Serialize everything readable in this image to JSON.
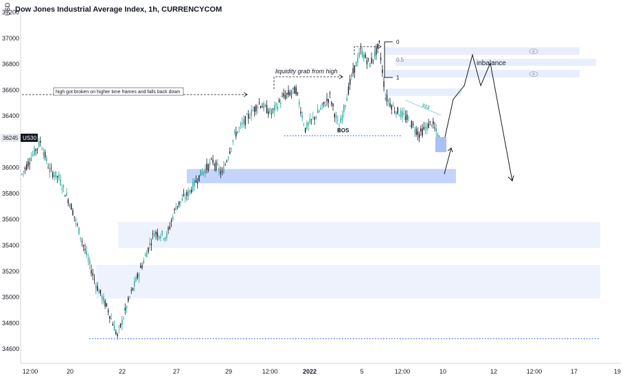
{
  "chart_data": {
    "type": "candlestick",
    "title": "Dow Jones Industrial Average Index, 1h, CURRENCYCOM",
    "unit_label": "USD",
    "symbol": "US30",
    "last_price_label": "36245",
    "ylim": [
      34500,
      37200
    ],
    "y_ticks": [
      "37200",
      "37000",
      "36800",
      "36600",
      "36400",
      "36000",
      "35800",
      "35600",
      "35400",
      "35200",
      "35000",
      "34800",
      "34600"
    ],
    "x_ticks": [
      "12:00",
      "20",
      "22",
      "27",
      "29",
      "12:00",
      "2022",
      "5",
      "12:00",
      "10",
      "12",
      "12:00",
      "17",
      "19"
    ],
    "x_tick_bold": [
      false,
      false,
      false,
      false,
      false,
      false,
      true,
      false,
      false,
      false,
      false,
      false,
      false,
      false
    ],
    "price_path": [
      {
        "t": 0,
        "p": 35950
      },
      {
        "t": 6,
        "p": 36080
      },
      {
        "t": 12,
        "p": 36200
      },
      {
        "t": 18,
        "p": 35980
      },
      {
        "t": 24,
        "p": 35920
      },
      {
        "t": 32,
        "p": 35700
      },
      {
        "t": 40,
        "p": 35400
      },
      {
        "t": 48,
        "p": 35100
      },
      {
        "t": 56,
        "p": 34900
      },
      {
        "t": 62,
        "p": 34700
      },
      {
        "t": 70,
        "p": 35000
      },
      {
        "t": 78,
        "p": 35250
      },
      {
        "t": 86,
        "p": 35500
      },
      {
        "t": 94,
        "p": 35470
      },
      {
        "t": 100,
        "p": 35700
      },
      {
        "t": 108,
        "p": 35800
      },
      {
        "t": 116,
        "p": 35950
      },
      {
        "t": 124,
        "p": 36050
      },
      {
        "t": 130,
        "p": 35950
      },
      {
        "t": 138,
        "p": 36250
      },
      {
        "t": 146,
        "p": 36380
      },
      {
        "t": 154,
        "p": 36500
      },
      {
        "t": 162,
        "p": 36420
      },
      {
        "t": 170,
        "p": 36550
      },
      {
        "t": 178,
        "p": 36600
      },
      {
        "t": 184,
        "p": 36300
      },
      {
        "t": 192,
        "p": 36420
      },
      {
        "t": 200,
        "p": 36550
      },
      {
        "t": 206,
        "p": 36300
      },
      {
        "t": 214,
        "p": 36700
      },
      {
        "t": 220,
        "p": 36900
      },
      {
        "t": 226,
        "p": 36800
      },
      {
        "t": 232,
        "p": 36950
      },
      {
        "t": 236,
        "p": 36550
      },
      {
        "t": 242,
        "p": 36450
      },
      {
        "t": 250,
        "p": 36380
      },
      {
        "t": 258,
        "p": 36260
      },
      {
        "t": 266,
        "p": 36350
      },
      {
        "t": 272,
        "p": 36200
      }
    ],
    "annotations": {
      "high_note": "high got broken on higher time frames and falls back down",
      "liquidity_note": "liquidity grab from high",
      "bos_label": "BOS",
      "imbalance_label": "inbalance",
      "fib_labels": [
        "0",
        "0.5",
        "1"
      ],
      "trendline_label": "$$$"
    },
    "zones": [
      {
        "name": "demand-zone-upper",
        "from": 35880,
        "to": 35990,
        "color": "#c5d4fb"
      },
      {
        "name": "zone-mid",
        "from": 35380,
        "to": 35580,
        "color": "#eef2fd"
      },
      {
        "name": "zone-low",
        "from": 34990,
        "to": 35250,
        "color": "#eef2fd"
      }
    ],
    "colors": {
      "up": "#26a69a",
      "down": "#131722",
      "zone": "#c5d4fb",
      "zone_light": "#eef2fd",
      "dotted": "#2962ff",
      "axis_text": "#131722",
      "symbol_badge": "#131722"
    }
  }
}
